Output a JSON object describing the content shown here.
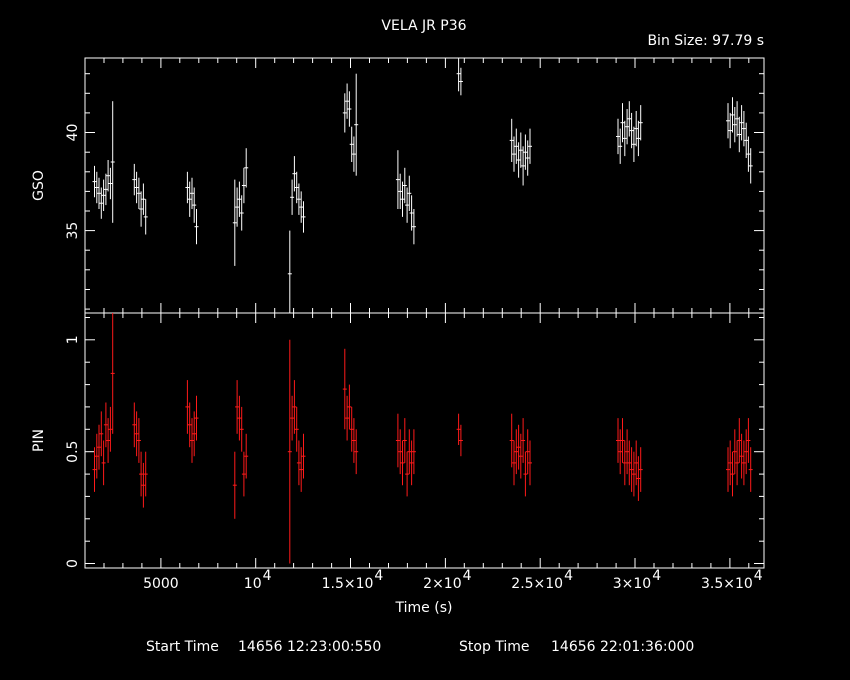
{
  "header": {
    "title": "VELA JR P36",
    "bin_size": "Bin Size: 97.79 s"
  },
  "footer": {
    "start_label": "Start Time",
    "start_value": "14656 12:23:00:550",
    "stop_label": "Stop Time",
    "stop_value": "14656 22:01:36:000"
  },
  "chart_data": [
    {
      "type": "scatter",
      "name": "GSO",
      "ylabel": "GSO",
      "xlabel": "",
      "xlim": [
        1000,
        36800
      ],
      "ylim": [
        30.8,
        43.8
      ],
      "color": "#ffffff",
      "y_ticks": [
        {
          "value": 35,
          "label": "35"
        },
        {
          "value": 40,
          "label": "40"
        }
      ],
      "points": [
        {
          "x": 1500,
          "y": 37.5,
          "err": 0.8
        },
        {
          "x": 1620,
          "y": 37.2,
          "err": 0.8
        },
        {
          "x": 1740,
          "y": 36.9,
          "err": 0.8
        },
        {
          "x": 1860,
          "y": 36.4,
          "err": 0.8
        },
        {
          "x": 1980,
          "y": 36.8,
          "err": 0.8
        },
        {
          "x": 2100,
          "y": 37.1,
          "err": 0.8
        },
        {
          "x": 2220,
          "y": 37.8,
          "err": 0.8
        },
        {
          "x": 2340,
          "y": 37.4,
          "err": 0.8
        },
        {
          "x": 2460,
          "y": 38.5,
          "err": 3.1
        },
        {
          "x": 3600,
          "y": 37.6,
          "err": 0.8
        },
        {
          "x": 3720,
          "y": 37.2,
          "err": 0.8
        },
        {
          "x": 3840,
          "y": 36.9,
          "err": 0.8
        },
        {
          "x": 3960,
          "y": 36.1,
          "err": 0.9
        },
        {
          "x": 4080,
          "y": 36.6,
          "err": 0.8
        },
        {
          "x": 4200,
          "y": 35.7,
          "err": 0.9
        },
        {
          "x": 6400,
          "y": 37.2,
          "err": 0.8
        },
        {
          "x": 6520,
          "y": 36.6,
          "err": 0.9
        },
        {
          "x": 6640,
          "y": 36.9,
          "err": 0.8
        },
        {
          "x": 6760,
          "y": 36.3,
          "err": 0.9
        },
        {
          "x": 6880,
          "y": 35.2,
          "err": 0.9
        },
        {
          "x": 8900,
          "y": 35.4,
          "err": 2.2
        },
        {
          "x": 9020,
          "y": 36.2,
          "err": 1.0
        },
        {
          "x": 9140,
          "y": 36.6,
          "err": 0.9
        },
        {
          "x": 9260,
          "y": 35.9,
          "err": 0.9
        },
        {
          "x": 9380,
          "y": 37.3,
          "err": 0.9
        },
        {
          "x": 9500,
          "y": 38.2,
          "err": 1.0
        },
        {
          "x": 11800,
          "y": 32.8,
          "err": 2.2
        },
        {
          "x": 11920,
          "y": 36.7,
          "err": 0.9
        },
        {
          "x": 12040,
          "y": 37.9,
          "err": 0.9
        },
        {
          "x": 12160,
          "y": 37.2,
          "err": 0.8
        },
        {
          "x": 12280,
          "y": 36.6,
          "err": 0.8
        },
        {
          "x": 12400,
          "y": 36.2,
          "err": 0.8
        },
        {
          "x": 12520,
          "y": 35.7,
          "err": 0.8
        },
        {
          "x": 14700,
          "y": 41.0,
          "err": 1.0
        },
        {
          "x": 14820,
          "y": 41.6,
          "err": 0.9
        },
        {
          "x": 14940,
          "y": 41.2,
          "err": 0.9
        },
        {
          "x": 15060,
          "y": 39.4,
          "err": 0.9
        },
        {
          "x": 15180,
          "y": 38.9,
          "err": 0.9
        },
        {
          "x": 15300,
          "y": 40.4,
          "err": 2.6
        },
        {
          "x": 17500,
          "y": 37.6,
          "err": 1.5
        },
        {
          "x": 17620,
          "y": 37.0,
          "err": 0.9
        },
        {
          "x": 17740,
          "y": 36.6,
          "err": 0.9
        },
        {
          "x": 17860,
          "y": 37.3,
          "err": 0.9
        },
        {
          "x": 17980,
          "y": 36.3,
          "err": 0.9
        },
        {
          "x": 18100,
          "y": 36.9,
          "err": 0.9
        },
        {
          "x": 18220,
          "y": 35.9,
          "err": 0.9
        },
        {
          "x": 18340,
          "y": 35.2,
          "err": 0.9
        },
        {
          "x": 20700,
          "y": 43.0,
          "err": 0.9
        },
        {
          "x": 20820,
          "y": 42.6,
          "err": 0.7
        },
        {
          "x": 23500,
          "y": 39.6,
          "err": 1.1
        },
        {
          "x": 23620,
          "y": 38.9,
          "err": 0.9
        },
        {
          "x": 23740,
          "y": 39.3,
          "err": 0.9
        },
        {
          "x": 23860,
          "y": 38.6,
          "err": 0.9
        },
        {
          "x": 23980,
          "y": 39.1,
          "err": 0.9
        },
        {
          "x": 24100,
          "y": 38.3,
          "err": 1.0
        },
        {
          "x": 24220,
          "y": 39.0,
          "err": 0.9
        },
        {
          "x": 24340,
          "y": 38.7,
          "err": 0.9
        },
        {
          "x": 24460,
          "y": 39.3,
          "err": 0.9
        },
        {
          "x": 29100,
          "y": 39.8,
          "err": 0.9
        },
        {
          "x": 29220,
          "y": 39.3,
          "err": 0.9
        },
        {
          "x": 29340,
          "y": 40.5,
          "err": 1.0
        },
        {
          "x": 29460,
          "y": 39.7,
          "err": 0.9
        },
        {
          "x": 29580,
          "y": 40.3,
          "err": 0.9
        },
        {
          "x": 29700,
          "y": 40.7,
          "err": 0.9
        },
        {
          "x": 29820,
          "y": 40.1,
          "err": 0.9
        },
        {
          "x": 29940,
          "y": 39.4,
          "err": 0.9
        },
        {
          "x": 30060,
          "y": 40.2,
          "err": 0.9
        },
        {
          "x": 30180,
          "y": 39.7,
          "err": 0.9
        },
        {
          "x": 30300,
          "y": 40.5,
          "err": 0.9
        },
        {
          "x": 34900,
          "y": 40.6,
          "err": 0.9
        },
        {
          "x": 35020,
          "y": 40.1,
          "err": 0.9
        },
        {
          "x": 35140,
          "y": 40.9,
          "err": 0.9
        },
        {
          "x": 35260,
          "y": 40.4,
          "err": 0.9
        },
        {
          "x": 35380,
          "y": 40.7,
          "err": 0.9
        },
        {
          "x": 35500,
          "y": 39.9,
          "err": 0.9
        },
        {
          "x": 35620,
          "y": 40.5,
          "err": 0.9
        },
        {
          "x": 35740,
          "y": 40.2,
          "err": 0.9
        },
        {
          "x": 35860,
          "y": 39.6,
          "err": 0.9
        },
        {
          "x": 35980,
          "y": 38.9,
          "err": 0.9
        },
        {
          "x": 36100,
          "y": 38.3,
          "err": 0.9
        }
      ]
    },
    {
      "type": "scatter",
      "name": "PIN",
      "ylabel": "PIN",
      "xlabel": "Time (s)",
      "xlim": [
        1000,
        36800
      ],
      "ylim": [
        -0.02,
        1.12
      ],
      "color": "#ff1a1a",
      "y_ticks": [
        {
          "value": 0,
          "label": "0"
        },
        {
          "value": 0.5,
          "label": "0.5"
        },
        {
          "value": 1,
          "label": "1"
        }
      ],
      "x_ticks": [
        {
          "value": 5000,
          "label": "5000",
          "exp": ""
        },
        {
          "value": 10000,
          "label": "10",
          "exp": "4"
        },
        {
          "value": 15000,
          "label": "1.5×10",
          "exp": "4"
        },
        {
          "value": 20000,
          "label": "2×10",
          "exp": "4"
        },
        {
          "value": 25000,
          "label": "2.5×10",
          "exp": "4"
        },
        {
          "value": 30000,
          "label": "3×10",
          "exp": "4"
        },
        {
          "value": 35000,
          "label": "3.5×10",
          "exp": "4"
        }
      ],
      "points": [
        {
          "x": 1500,
          "y": 0.42,
          "err": 0.1
        },
        {
          "x": 1620,
          "y": 0.48,
          "err": 0.1
        },
        {
          "x": 1740,
          "y": 0.52,
          "err": 0.1
        },
        {
          "x": 1860,
          "y": 0.58,
          "err": 0.1
        },
        {
          "x": 1980,
          "y": 0.45,
          "err": 0.1
        },
        {
          "x": 2100,
          "y": 0.62,
          "err": 0.1
        },
        {
          "x": 2220,
          "y": 0.55,
          "err": 0.1
        },
        {
          "x": 2340,
          "y": 0.6,
          "err": 0.1
        },
        {
          "x": 2460,
          "y": 0.85,
          "err": 0.27
        },
        {
          "x": 3600,
          "y": 0.62,
          "err": 0.1
        },
        {
          "x": 3720,
          "y": 0.58,
          "err": 0.1
        },
        {
          "x": 3840,
          "y": 0.55,
          "err": 0.1
        },
        {
          "x": 3960,
          "y": 0.4,
          "err": 0.1
        },
        {
          "x": 4080,
          "y": 0.35,
          "err": 0.1
        },
        {
          "x": 4200,
          "y": 0.4,
          "err": 0.1
        },
        {
          "x": 6400,
          "y": 0.7,
          "err": 0.12
        },
        {
          "x": 6520,
          "y": 0.62,
          "err": 0.1
        },
        {
          "x": 6640,
          "y": 0.55,
          "err": 0.1
        },
        {
          "x": 6760,
          "y": 0.58,
          "err": 0.1
        },
        {
          "x": 6880,
          "y": 0.65,
          "err": 0.1
        },
        {
          "x": 8900,
          "y": 0.35,
          "err": 0.15
        },
        {
          "x": 9020,
          "y": 0.7,
          "err": 0.12
        },
        {
          "x": 9140,
          "y": 0.65,
          "err": 0.1
        },
        {
          "x": 9260,
          "y": 0.6,
          "err": 0.1
        },
        {
          "x": 9380,
          "y": 0.4,
          "err": 0.1
        },
        {
          "x": 9500,
          "y": 0.48,
          "err": 0.1
        },
        {
          "x": 11800,
          "y": 0.5,
          "err": 0.5
        },
        {
          "x": 11920,
          "y": 0.65,
          "err": 0.1
        },
        {
          "x": 12040,
          "y": 0.7,
          "err": 0.12
        },
        {
          "x": 12160,
          "y": 0.6,
          "err": 0.1
        },
        {
          "x": 12280,
          "y": 0.45,
          "err": 0.1
        },
        {
          "x": 12400,
          "y": 0.42,
          "err": 0.1
        },
        {
          "x": 12520,
          "y": 0.48,
          "err": 0.1
        },
        {
          "x": 14700,
          "y": 0.78,
          "err": 0.18
        },
        {
          "x": 14820,
          "y": 0.65,
          "err": 0.1
        },
        {
          "x": 14940,
          "y": 0.7,
          "err": 0.1
        },
        {
          "x": 15060,
          "y": 0.6,
          "err": 0.1
        },
        {
          "x": 15180,
          "y": 0.55,
          "err": 0.1
        },
        {
          "x": 15300,
          "y": 0.5,
          "err": 0.1
        },
        {
          "x": 17500,
          "y": 0.55,
          "err": 0.12
        },
        {
          "x": 17620,
          "y": 0.5,
          "err": 0.1
        },
        {
          "x": 17740,
          "y": 0.45,
          "err": 0.1
        },
        {
          "x": 17860,
          "y": 0.55,
          "err": 0.1
        },
        {
          "x": 17980,
          "y": 0.4,
          "err": 0.1
        },
        {
          "x": 18100,
          "y": 0.5,
          "err": 0.1
        },
        {
          "x": 18220,
          "y": 0.45,
          "err": 0.1
        },
        {
          "x": 18340,
          "y": 0.5,
          "err": 0.1
        },
        {
          "x": 20700,
          "y": 0.6,
          "err": 0.07
        },
        {
          "x": 20820,
          "y": 0.55,
          "err": 0.07
        },
        {
          "x": 23500,
          "y": 0.55,
          "err": 0.12
        },
        {
          "x": 23620,
          "y": 0.45,
          "err": 0.1
        },
        {
          "x": 23740,
          "y": 0.5,
          "err": 0.1
        },
        {
          "x": 23860,
          "y": 0.52,
          "err": 0.1
        },
        {
          "x": 23980,
          "y": 0.48,
          "err": 0.1
        },
        {
          "x": 24100,
          "y": 0.55,
          "err": 0.1
        },
        {
          "x": 24220,
          "y": 0.4,
          "err": 0.1
        },
        {
          "x": 24340,
          "y": 0.5,
          "err": 0.1
        },
        {
          "x": 24460,
          "y": 0.45,
          "err": 0.1
        },
        {
          "x": 29100,
          "y": 0.55,
          "err": 0.1
        },
        {
          "x": 29220,
          "y": 0.5,
          "err": 0.1
        },
        {
          "x": 29340,
          "y": 0.55,
          "err": 0.1
        },
        {
          "x": 29460,
          "y": 0.45,
          "err": 0.1
        },
        {
          "x": 29580,
          "y": 0.5,
          "err": 0.1
        },
        {
          "x": 29700,
          "y": 0.45,
          "err": 0.1
        },
        {
          "x": 29820,
          "y": 0.42,
          "err": 0.1
        },
        {
          "x": 29940,
          "y": 0.4,
          "err": 0.1
        },
        {
          "x": 30060,
          "y": 0.45,
          "err": 0.1
        },
        {
          "x": 30180,
          "y": 0.38,
          "err": 0.1
        },
        {
          "x": 30300,
          "y": 0.42,
          "err": 0.1
        },
        {
          "x": 34900,
          "y": 0.42,
          "err": 0.1
        },
        {
          "x": 35020,
          "y": 0.45,
          "err": 0.1
        },
        {
          "x": 35140,
          "y": 0.4,
          "err": 0.1
        },
        {
          "x": 35260,
          "y": 0.5,
          "err": 0.1
        },
        {
          "x": 35380,
          "y": 0.45,
          "err": 0.1
        },
        {
          "x": 35500,
          "y": 0.55,
          "err": 0.1
        },
        {
          "x": 35620,
          "y": 0.48,
          "err": 0.1
        },
        {
          "x": 35740,
          "y": 0.45,
          "err": 0.1
        },
        {
          "x": 35860,
          "y": 0.5,
          "err": 0.1
        },
        {
          "x": 35980,
          "y": 0.55,
          "err": 0.1
        },
        {
          "x": 36100,
          "y": 0.42,
          "err": 0.1
        }
      ]
    }
  ]
}
